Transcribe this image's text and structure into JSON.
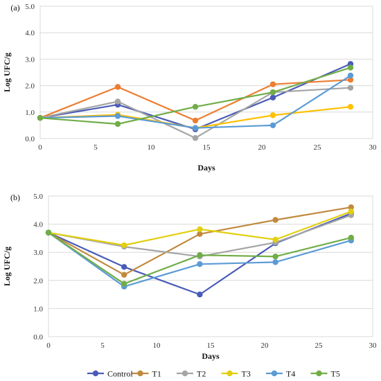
{
  "chart_data": [
    {
      "type": "line",
      "panel_label": "(a)",
      "xlabel": "Days",
      "ylabel": "Log UFC/g",
      "xlim": [
        0,
        30
      ],
      "ylim": [
        0,
        5
      ],
      "x_ticks": [
        0,
        5,
        10,
        15,
        20,
        25,
        30
      ],
      "y_ticks": [
        "0.0",
        "1.0",
        "2.0",
        "3.0",
        "4.0",
        "5.0"
      ],
      "grid": "horizontal",
      "x": [
        0,
        7,
        14,
        21,
        28
      ],
      "series": [
        {
          "name": "Control",
          "color": "#4a5bb8",
          "values": [
            0.78,
            1.28,
            0.35,
            1.55,
            2.82
          ]
        },
        {
          "name": "T1",
          "color": "#ed7d31",
          "values": [
            0.78,
            1.95,
            0.68,
            2.05,
            2.22
          ]
        },
        {
          "name": "T2",
          "color": "#a5a5a5",
          "values": [
            0.78,
            1.4,
            0.02,
            1.75,
            1.92
          ]
        },
        {
          "name": "T3",
          "color": "#ffc000",
          "values": [
            0.78,
            0.9,
            0.4,
            0.88,
            1.2
          ]
        },
        {
          "name": "T4",
          "color": "#5b9bd5",
          "values": [
            0.78,
            0.85,
            0.4,
            0.5,
            2.38
          ]
        },
        {
          "name": "T5",
          "color": "#70ad47",
          "values": [
            0.78,
            0.55,
            1.2,
            1.75,
            2.68
          ]
        }
      ]
    },
    {
      "type": "line",
      "panel_label": "(b)",
      "xlabel": "Days",
      "ylabel": "Log UFC/g",
      "xlim": [
        0,
        30
      ],
      "ylim": [
        0,
        5
      ],
      "x_ticks": [
        0,
        5,
        10,
        15,
        20,
        25,
        30
      ],
      "y_ticks": [
        "0.0",
        "1.0",
        "2.0",
        "3.0",
        "4.0",
        "5.0"
      ],
      "grid": "horizontal",
      "x": [
        0,
        7,
        14,
        21,
        28
      ],
      "series": [
        {
          "name": "Control",
          "color": "#4a5bb8",
          "values": [
            3.7,
            2.48,
            1.5,
            3.32,
            4.38
          ]
        },
        {
          "name": "T1",
          "color": "#c08a3e",
          "values": [
            3.7,
            2.2,
            3.65,
            4.15,
            4.6
          ]
        },
        {
          "name": "T2",
          "color": "#a5a5a5",
          "values": [
            3.7,
            3.2,
            2.85,
            3.35,
            4.32
          ]
        },
        {
          "name": "T3",
          "color": "#e2cf10",
          "values": [
            3.7,
            3.25,
            3.82,
            3.45,
            4.45
          ]
        },
        {
          "name": "T4",
          "color": "#5b9bd5",
          "values": [
            3.7,
            1.78,
            2.58,
            2.65,
            3.42
          ]
        },
        {
          "name": "T5",
          "color": "#70ad47",
          "values": [
            3.7,
            1.88,
            2.9,
            2.85,
            3.52
          ]
        }
      ]
    }
  ],
  "legend": {
    "placement": "bottom",
    "items": [
      {
        "name": "Control",
        "color": "#4a5bb8"
      },
      {
        "name": "T1",
        "color": "#c08a3e"
      },
      {
        "name": "T2",
        "color": "#a5a5a5"
      },
      {
        "name": "T3",
        "color": "#e2cf10"
      },
      {
        "name": "T4",
        "color": "#5b9bd5"
      },
      {
        "name": "T5",
        "color": "#70ad47"
      }
    ]
  }
}
